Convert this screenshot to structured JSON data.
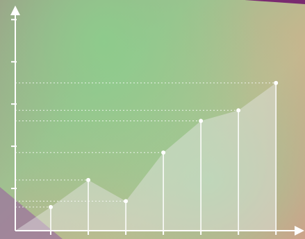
{
  "chart_data": {
    "type": "stem-area",
    "x": [
      1,
      2,
      3,
      4,
      5,
      6,
      7
    ],
    "values": [
      0.56,
      1.2,
      0.7,
      1.85,
      2.6,
      2.85,
      3.5
    ],
    "xlim": [
      0,
      7.7
    ],
    "ylim": [
      0,
      5.3
    ],
    "xticks": [
      1,
      2,
      3,
      4,
      5,
      6,
      7
    ],
    "yticks": [
      1,
      2,
      3,
      4,
      5
    ],
    "color": "#ffffff",
    "area_color": "#e6e6e6",
    "grid": "dotted"
  }
}
